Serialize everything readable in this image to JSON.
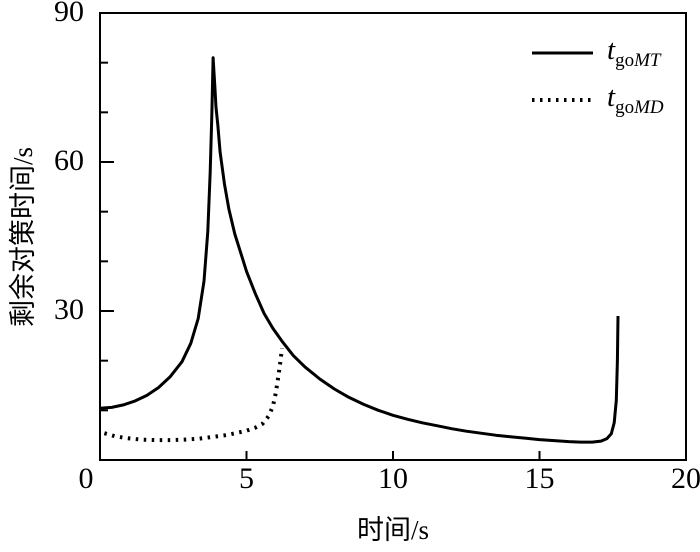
{
  "chart_data": {
    "type": "line",
    "title": "",
    "xlabel": "时间/s",
    "ylabel": "剩余对策时间/s",
    "xlim": [
      0,
      20
    ],
    "ylim": [
      0,
      90
    ],
    "xticks": [
      0,
      5,
      10,
      15,
      20
    ],
    "yticks_major": [
      30,
      60,
      90
    ],
    "yticks_minor": [
      10,
      20,
      40,
      50,
      70,
      80
    ],
    "grid": false,
    "legend_position": "upper-right",
    "axis_color": "#000000",
    "background_color": "#ffffff",
    "series": [
      {
        "name": "t_goMT",
        "legend_main": "t",
        "legend_sub_upright": "go",
        "legend_sub_italic": "MT",
        "line_style": "solid",
        "color": "#000000",
        "points": [
          [
            0,
            10.4
          ],
          [
            0.4,
            10.6
          ],
          [
            0.8,
            11.1
          ],
          [
            1.2,
            11.9
          ],
          [
            1.6,
            13.0
          ],
          [
            2.0,
            14.6
          ],
          [
            2.4,
            16.8
          ],
          [
            2.8,
            19.8
          ],
          [
            3.1,
            23.5
          ],
          [
            3.35,
            28.5
          ],
          [
            3.55,
            36
          ],
          [
            3.68,
            46
          ],
          [
            3.76,
            58
          ],
          [
            3.82,
            70
          ],
          [
            3.86,
            81
          ],
          [
            3.92,
            75
          ],
          [
            3.96,
            71
          ],
          [
            4.02,
            67.5
          ],
          [
            4.1,
            62
          ],
          [
            4.25,
            55.5
          ],
          [
            4.4,
            50.5
          ],
          [
            4.6,
            45.5
          ],
          [
            4.8,
            41.8
          ],
          [
            5.0,
            38
          ],
          [
            5.3,
            33.5
          ],
          [
            5.6,
            29.5
          ],
          [
            5.9,
            26.5
          ],
          [
            6.2,
            24
          ],
          [
            6.6,
            21
          ],
          [
            7.0,
            18.7
          ],
          [
            7.5,
            16.3
          ],
          [
            8.0,
            14.3
          ],
          [
            8.5,
            12.6
          ],
          [
            9.0,
            11.2
          ],
          [
            9.5,
            10.0
          ],
          [
            10.0,
            9.0
          ],
          [
            10.5,
            8.2
          ],
          [
            11.0,
            7.5
          ],
          [
            11.5,
            6.9
          ],
          [
            12.0,
            6.3
          ],
          [
            12.5,
            5.8
          ],
          [
            13.0,
            5.4
          ],
          [
            13.5,
            5.0
          ],
          [
            14.0,
            4.7
          ],
          [
            14.5,
            4.4
          ],
          [
            15.0,
            4.1
          ],
          [
            15.5,
            3.9
          ],
          [
            16.0,
            3.7
          ],
          [
            16.4,
            3.6
          ],
          [
            16.8,
            3.6
          ],
          [
            17.1,
            3.8
          ],
          [
            17.3,
            4.3
          ],
          [
            17.45,
            5.3
          ],
          [
            17.55,
            7.5
          ],
          [
            17.62,
            12
          ],
          [
            17.66,
            20
          ],
          [
            17.68,
            29
          ]
        ]
      },
      {
        "name": "t_goMD",
        "legend_main": "t",
        "legend_sub_upright": "go",
        "legend_sub_italic": "MD",
        "line_style": "dotted",
        "color": "#000000",
        "points": [
          [
            0.15,
            5.4
          ],
          [
            0.5,
            4.8
          ],
          [
            0.9,
            4.4
          ],
          [
            1.4,
            4.1
          ],
          [
            1.9,
            4.0
          ],
          [
            2.4,
            4.0
          ],
          [
            2.9,
            4.1
          ],
          [
            3.4,
            4.3
          ],
          [
            3.9,
            4.7
          ],
          [
            4.3,
            5.0
          ],
          [
            4.7,
            5.5
          ],
          [
            5.0,
            5.9
          ],
          [
            5.3,
            6.5
          ],
          [
            5.55,
            7.3
          ],
          [
            5.75,
            8.8
          ],
          [
            5.9,
            10.8
          ],
          [
            6.0,
            13.5
          ],
          [
            6.08,
            16.5
          ],
          [
            6.15,
            19.5
          ],
          [
            6.21,
            22.5
          ]
        ]
      }
    ]
  }
}
